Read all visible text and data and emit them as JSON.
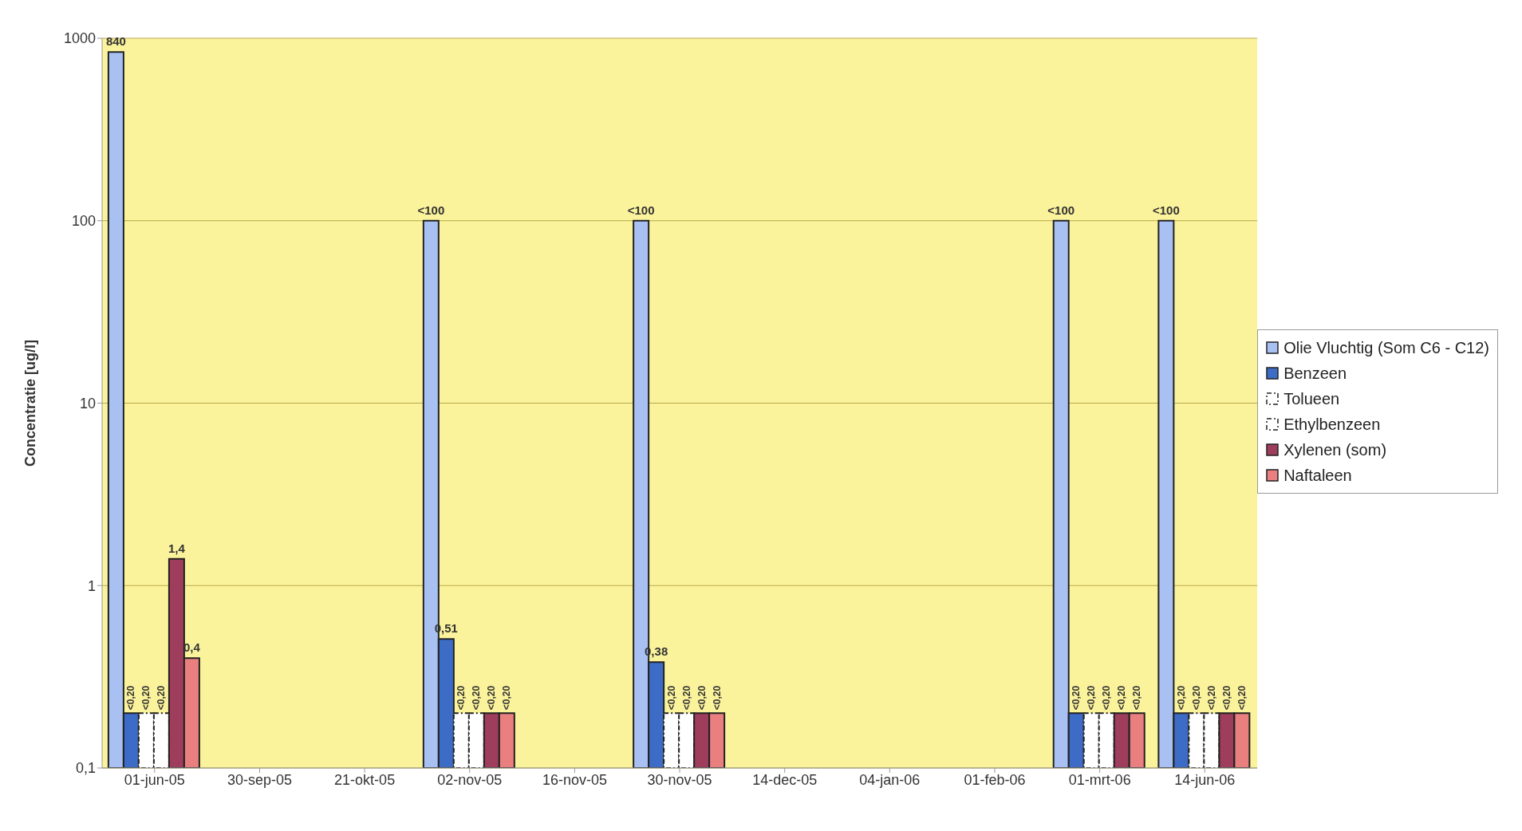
{
  "chart_data": {
    "type": "bar",
    "ylabel": "Concentratie [ug/l]",
    "categories": [
      "01-jun-05",
      "30-sep-05",
      "21-okt-05",
      "02-nov-05",
      "16-nov-05",
      "30-nov-05",
      "14-dec-05",
      "04-jan-06",
      "01-feb-06",
      "01-mrt-06",
      "14-jun-06"
    ],
    "series": [
      {
        "name": "Olie Vluchtig (Som C6 - C12)",
        "color": "#a9c1f2",
        "values": [
          840,
          null,
          null,
          100,
          null,
          100,
          null,
          null,
          null,
          100,
          100
        ],
        "value_labels": [
          "840",
          null,
          null,
          "<100",
          null,
          "<100",
          null,
          null,
          null,
          "<100",
          "<100"
        ]
      },
      {
        "name": "Benzeen",
        "color": "#3d6cc6",
        "values": [
          0.2,
          null,
          null,
          0.51,
          null,
          0.38,
          null,
          null,
          null,
          0.2,
          0.2
        ],
        "value_labels": [
          "<0,20",
          null,
          null,
          "0,51",
          null,
          "0,38",
          null,
          null,
          null,
          "<0,20",
          "<0,20"
        ]
      },
      {
        "name": "Tolueen",
        "color": "#ffffff",
        "values": [
          0.2,
          null,
          null,
          0.2,
          null,
          0.2,
          null,
          null,
          null,
          0.2,
          0.2
        ],
        "value_labels": [
          "<0,20",
          null,
          null,
          "<0,20",
          null,
          "<0,20",
          null,
          null,
          null,
          "<0,20",
          "<0,20"
        ]
      },
      {
        "name": "Ethylbenzeen",
        "color": "#ffffff",
        "values": [
          0.2,
          null,
          null,
          0.2,
          null,
          0.2,
          null,
          null,
          null,
          0.2,
          0.2
        ],
        "value_labels": [
          "<0,20",
          null,
          null,
          "<0,20",
          null,
          "<0,20",
          null,
          null,
          null,
          "<0,20",
          "<0,20"
        ]
      },
      {
        "name": "Xylenen (som)",
        "color": "#9e3d5c",
        "values": [
          1.4,
          null,
          null,
          0.2,
          null,
          0.2,
          null,
          null,
          null,
          0.2,
          0.2
        ],
        "value_labels": [
          "1,4",
          null,
          null,
          "<0,20",
          null,
          "<0,20",
          null,
          null,
          null,
          "<0,20",
          "<0,20"
        ]
      },
      {
        "name": "Naftaleen",
        "color": "#ea7f80",
        "values": [
          0.4,
          null,
          null,
          0.2,
          null,
          0.2,
          null,
          null,
          null,
          0.2,
          0.2
        ],
        "value_labels": [
          "0,4",
          null,
          null,
          "<0,20",
          null,
          "<0,20",
          null,
          null,
          null,
          "<0,20",
          "<0,20"
        ]
      }
    ],
    "log": true,
    "ylim": [
      0.1,
      1000
    ],
    "yticks": [
      {
        "value": 0.1,
        "label": "0,1"
      },
      1,
      10,
      100,
      1000
    ],
    "grid": "y",
    "legend": "right"
  }
}
